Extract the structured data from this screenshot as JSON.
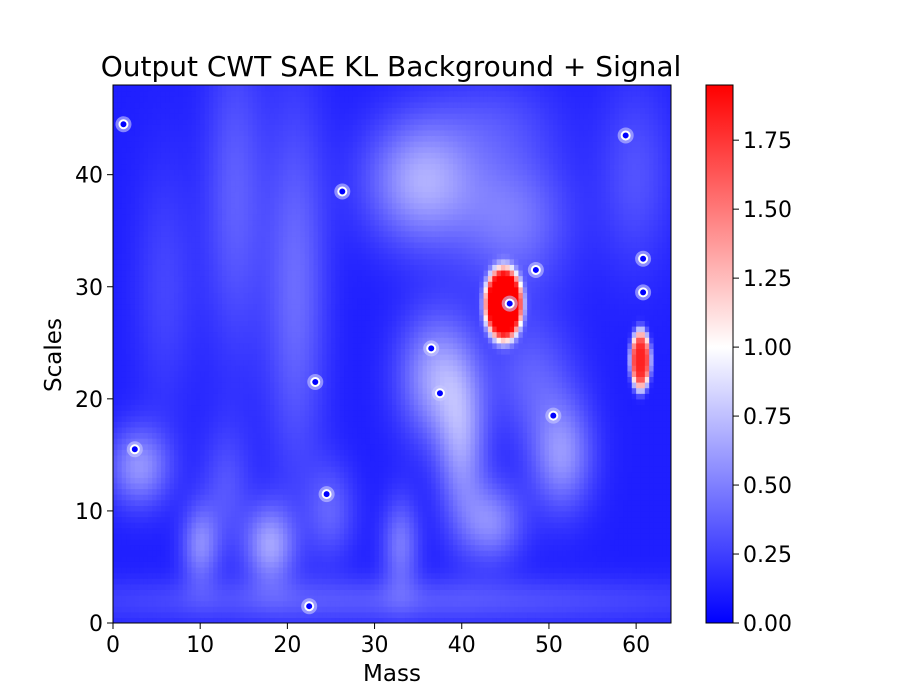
{
  "chart_data": {
    "type": "heatmap",
    "title": "Output CWT SAE KL Background + Signal",
    "xlabel": "Mass",
    "ylabel": "Scales",
    "xlim": [
      0,
      64
    ],
    "ylim": [
      0,
      48
    ],
    "xticks": [
      "0",
      "10",
      "20",
      "30",
      "40",
      "50",
      "60"
    ],
    "yticks": [
      "0",
      "10",
      "20",
      "30",
      "40"
    ],
    "colormap": {
      "name": "bwr",
      "low": "#0000ff",
      "mid": "#ffffff",
      "high": "#ff0000"
    },
    "colorbar": {
      "min": 0.0,
      "max": 1.95,
      "ticks": [
        "0.00",
        "0.25",
        "0.50",
        "0.75",
        "1.00",
        "1.25",
        "1.50",
        "1.75"
      ]
    },
    "base_level": 0.12,
    "features": [
      {
        "x": 44.8,
        "y": 28.5,
        "sx": 2.2,
        "sy": 3.3,
        "amp": 2.3,
        "shape": "plateau"
      },
      {
        "x": 60.5,
        "y": 23.5,
        "sx": 1.2,
        "sy": 2.8,
        "amp": 1.7,
        "shape": "plateau"
      },
      {
        "x": 35.5,
        "y": 39.5,
        "sx": 4.5,
        "sy": 4.0,
        "amp": 0.55
      },
      {
        "x": 46.0,
        "y": 36.0,
        "sx": 4.5,
        "sy": 4.5,
        "amp": 0.35
      },
      {
        "x": 37.0,
        "y": 22.0,
        "sx": 3.0,
        "sy": 4.0,
        "amp": 0.5
      },
      {
        "x": 40.0,
        "y": 16.0,
        "sx": 2.0,
        "sy": 5.0,
        "amp": 0.45
      },
      {
        "x": 43.5,
        "y": 9.0,
        "sx": 2.5,
        "sy": 2.5,
        "amp": 0.4
      },
      {
        "x": 51.5,
        "y": 15.0,
        "sx": 2.5,
        "sy": 3.5,
        "amp": 0.45
      },
      {
        "x": 48.0,
        "y": 22.0,
        "sx": 3.5,
        "sy": 4.0,
        "amp": 0.25
      },
      {
        "x": 3.0,
        "y": 14.0,
        "sx": 2.5,
        "sy": 2.5,
        "amp": 0.45
      },
      {
        "x": 10.0,
        "y": 7.0,
        "sx": 1.5,
        "sy": 2.5,
        "amp": 0.4
      },
      {
        "x": 18.0,
        "y": 7.0,
        "sx": 2.0,
        "sy": 2.5,
        "amp": 0.5
      },
      {
        "x": 33.0,
        "y": 7.0,
        "sx": 1.5,
        "sy": 3.0,
        "amp": 0.35
      },
      {
        "x": 25.0,
        "y": 10.0,
        "sx": 2.0,
        "sy": 3.0,
        "amp": 0.25
      },
      {
        "x": 14.0,
        "y": 38.0,
        "sx": 2.5,
        "sy": 10.0,
        "amp": 0.25
      },
      {
        "x": 21.0,
        "y": 30.0,
        "sx": 2.5,
        "sy": 12.0,
        "amp": 0.3
      },
      {
        "x": 6.0,
        "y": 30.0,
        "sx": 2.5,
        "sy": 8.0,
        "amp": 0.15
      },
      {
        "x": 13.0,
        "y": 12.0,
        "sx": 2.0,
        "sy": 4.0,
        "amp": 0.2
      },
      {
        "x": 32.0,
        "y": 2.0,
        "sx": 30.0,
        "sy": 1.5,
        "amp": 0.22
      },
      {
        "x": 60.0,
        "y": 40.0,
        "sx": 3.0,
        "sy": 6.0,
        "amp": 0.2
      },
      {
        "x": 44.0,
        "y": 45.0,
        "sx": 5.0,
        "sy": 3.0,
        "amp": 0.15
      }
    ],
    "dots": [
      {
        "x": 45.5,
        "y": 28.5,
        "color": "#0000ff"
      },
      {
        "x": 1.2,
        "y": 44.5
      },
      {
        "x": 58.8,
        "y": 43.5
      },
      {
        "x": 26.3,
        "y": 38.5
      },
      {
        "x": 48.5,
        "y": 31.5
      },
      {
        "x": 60.8,
        "y": 32.5
      },
      {
        "x": 60.8,
        "y": 29.5
      },
      {
        "x": 36.5,
        "y": 24.5
      },
      {
        "x": 37.5,
        "y": 20.5
      },
      {
        "x": 23.2,
        "y": 21.5
      },
      {
        "x": 50.5,
        "y": 18.5
      },
      {
        "x": 2.5,
        "y": 15.5
      },
      {
        "x": 24.5,
        "y": 11.5
      },
      {
        "x": 22.5,
        "y": 1.5
      }
    ]
  }
}
